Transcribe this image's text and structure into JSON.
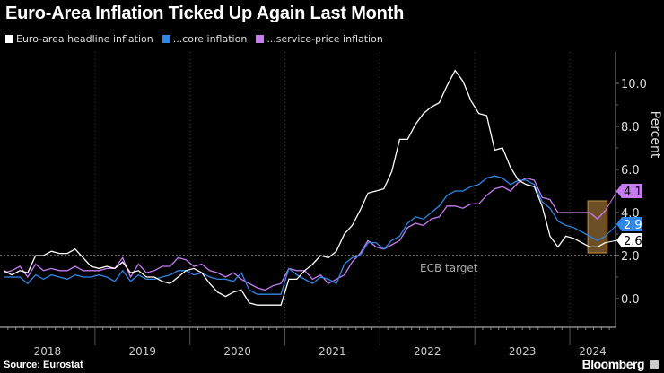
{
  "title": "Euro-Area Inflation Ticked Up Again Last Month",
  "source": "Source: Eurostat",
  "brand": "Bloomberg",
  "chart_data": {
    "type": "line",
    "title": "Euro-Area Inflation Ticked Up Again Last Month",
    "ylabel": "Percent",
    "ylim": [
      -1.2,
      11.2
    ],
    "yticks": [
      "0.0",
      "2.0",
      "4.0",
      "6.0",
      "8.0",
      "10.0"
    ],
    "ytick_values": [
      0,
      2,
      4,
      6,
      8,
      10
    ],
    "xticks": [
      "2018",
      "2019",
      "2020",
      "2021",
      "2022",
      "2023",
      "2024"
    ],
    "x_start": "2018-01",
    "x_end": "2024-05",
    "legend_position": "top-left",
    "annotation": {
      "label": "ECB target",
      "value": 2.0
    },
    "series": [
      {
        "name": "Euro-area headline inflation",
        "color": "#ffffff",
        "end_label": "2.6",
        "values": [
          1.3,
          1.1,
          1.3,
          1.2,
          2.0,
          2.0,
          2.2,
          2.1,
          2.1,
          2.3,
          1.9,
          1.5,
          1.4,
          1.5,
          1.4,
          1.7,
          1.2,
          1.3,
          1.0,
          1.0,
          0.8,
          0.7,
          1.0,
          1.3,
          1.4,
          1.2,
          0.7,
          0.3,
          0.1,
          0.3,
          0.4,
          -0.2,
          -0.3,
          -0.3,
          -0.3,
          -0.3,
          0.9,
          0.9,
          1.3,
          1.6,
          2.0,
          1.9,
          2.2,
          3.0,
          3.4,
          4.1,
          4.9,
          5.0,
          5.1,
          5.9,
          7.4,
          7.4,
          8.1,
          8.6,
          8.9,
          9.1,
          9.9,
          10.6,
          10.1,
          9.2,
          8.6,
          8.5,
          6.9,
          7.0,
          6.1,
          5.5,
          5.3,
          5.2,
          4.3,
          2.9,
          2.4,
          2.9,
          2.8,
          2.6,
          2.4,
          2.4,
          2.6
        ]
      },
      {
        "name": "...core inflation",
        "color": "#2f87e8",
        "end_label": "2.9",
        "values": [
          1.0,
          1.0,
          1.0,
          0.7,
          1.1,
          0.9,
          1.1,
          1.0,
          0.9,
          1.1,
          1.0,
          1.0,
          1.1,
          1.0,
          0.8,
          1.3,
          0.8,
          1.1,
          0.9,
          0.9,
          1.0,
          1.1,
          1.3,
          1.3,
          1.1,
          1.2,
          1.0,
          0.9,
          0.9,
          0.8,
          1.2,
          0.4,
          0.2,
          0.2,
          0.2,
          0.2,
          1.4,
          1.1,
          0.9,
          0.7,
          1.0,
          0.9,
          0.7,
          1.6,
          1.9,
          2.0,
          2.6,
          2.6,
          2.3,
          2.7,
          2.9,
          3.5,
          3.8,
          3.7,
          4.0,
          4.3,
          4.8,
          5.0,
          5.0,
          5.2,
          5.3,
          5.6,
          5.7,
          5.6,
          5.3,
          5.5,
          5.5,
          5.3,
          4.5,
          4.2,
          3.6,
          3.4,
          3.3,
          3.1,
          2.9,
          2.7,
          2.9
        ]
      },
      {
        "name": "...service-price inflation",
        "color": "#c77cf2",
        "end_label": "4.1",
        "values": [
          1.2,
          1.3,
          1.5,
          1.0,
          1.6,
          1.3,
          1.4,
          1.3,
          1.3,
          1.5,
          1.3,
          1.3,
          1.3,
          1.4,
          1.4,
          1.9,
          1.0,
          1.6,
          1.2,
          1.3,
          1.5,
          1.5,
          1.9,
          1.8,
          1.5,
          1.6,
          1.3,
          1.2,
          1.0,
          1.2,
          0.9,
          0.7,
          0.5,
          0.4,
          0.6,
          0.7,
          1.4,
          1.3,
          1.3,
          0.9,
          1.1,
          0.7,
          0.9,
          1.1,
          1.7,
          2.1,
          2.7,
          2.4,
          2.3,
          2.5,
          2.7,
          3.3,
          3.5,
          3.4,
          3.7,
          3.8,
          4.3,
          4.3,
          4.2,
          4.4,
          4.4,
          4.8,
          5.1,
          5.2,
          5.0,
          5.4,
          5.6,
          5.5,
          4.7,
          4.6,
          4.0,
          4.0,
          4.0,
          4.0,
          4.0,
          3.7,
          4.1
        ]
      }
    ],
    "highlight_months": [
      "2024-03",
      "2024-05"
    ],
    "highlight_color": "#a87a3a"
  }
}
